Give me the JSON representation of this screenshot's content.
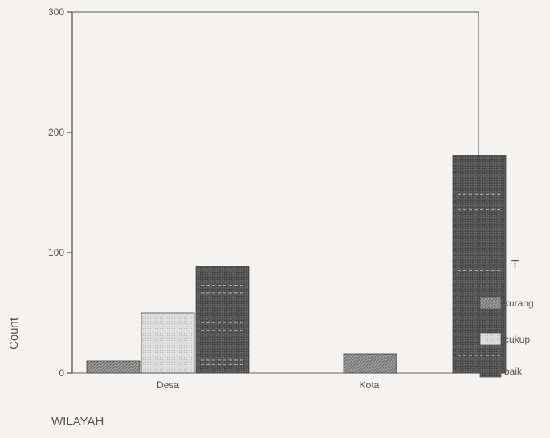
{
  "chart_data": {
    "type": "bar",
    "categories": [
      "Desa",
      "Kota"
    ],
    "series": [
      {
        "name": "kurang",
        "values": [
          10,
          16
        ],
        "color": "#8d8d8d"
      },
      {
        "name": "cukup",
        "values": [
          50,
          0
        ],
        "color": "#d8d8d8"
      },
      {
        "name": "baik",
        "values": [
          89,
          181
        ],
        "color": "#4f4f4f"
      }
    ],
    "xlabel": "WILAYAH",
    "ylabel": "Count",
    "ylim": [
      0,
      300
    ],
    "yticks": [
      0,
      100,
      200,
      300
    ],
    "legend_title": "DMF_T",
    "legend_position": "right",
    "grid": false
  }
}
